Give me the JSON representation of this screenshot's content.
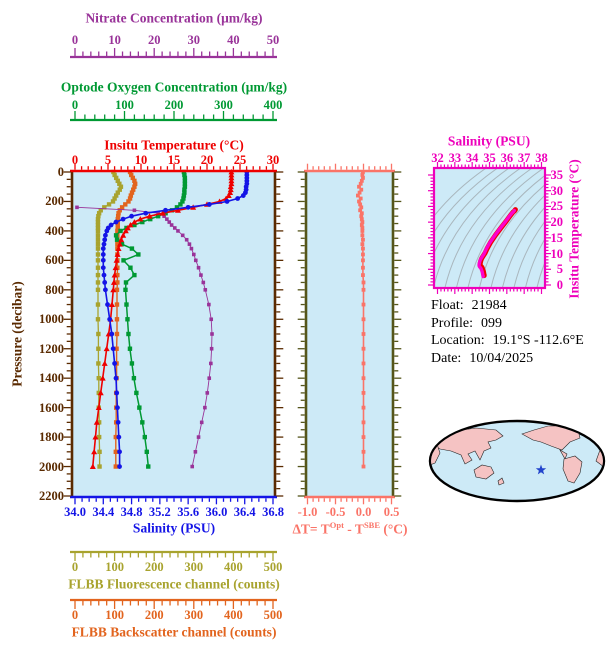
{
  "axes": {
    "nitrate": {
      "title": "Nitrate Concentration (μm/kg)",
      "ticks": [
        "0",
        "10",
        "20",
        "30",
        "40",
        "50"
      ],
      "range": [
        0,
        50
      ],
      "color": "#993399"
    },
    "oxygen": {
      "title": "Optode Oxygen Concentration (μm/kg)",
      "ticks": [
        "0",
        "100",
        "200",
        "300",
        "400"
      ],
      "range": [
        0,
        400
      ],
      "color": "#009933"
    },
    "temperature": {
      "title": "Insitu Temperature (°C)",
      "ticks": [
        "0",
        "5",
        "10",
        "15",
        "20",
        "25",
        "30"
      ],
      "range": [
        0,
        30
      ],
      "color": "#ee0000"
    },
    "salinity": {
      "title": "Salinity (PSU)",
      "ticks": [
        "34.0",
        "34.4",
        "34.8",
        "35.2",
        "35.6",
        "36.0",
        "36.4",
        "36.8"
      ],
      "range": [
        34.0,
        36.8
      ],
      "color": "#1414e6"
    },
    "pressure": {
      "title": "Pressure (decibar)",
      "ticks": [
        "0",
        "200",
        "400",
        "600",
        "800",
        "1000",
        "1200",
        "1400",
        "1600",
        "1800",
        "2000",
        "2200"
      ],
      "range": [
        0,
        2200
      ],
      "color": "#5a2a00"
    },
    "fluorescence": {
      "title": "FLBB Fluorescence channel (counts)",
      "ticks": [
        "0",
        "100",
        "200",
        "300",
        "400",
        "500"
      ],
      "range": [
        0,
        500
      ],
      "color": "#a8a32e"
    },
    "backscatter": {
      "title": "FLBB Backscatter channel (counts)",
      "ticks": [
        "0",
        "100",
        "200",
        "300",
        "400",
        "500"
      ],
      "range": [
        0,
        500
      ],
      "color": "#e2641e"
    },
    "delta_t": {
      "label_parts": {
        "pre": "ΔT= T",
        "sup1": "Opt",
        "mid": " - T",
        "sup2": "SBE",
        "post": " (°C)"
      },
      "ticks": [
        "-1.0",
        "-0.5",
        "0.0",
        "0.5"
      ],
      "range": [
        -1.0,
        0.5
      ],
      "color": "#fa7468"
    },
    "ts_salinity": {
      "title": "Salinity (PSU)",
      "ticks": [
        "32",
        "33",
        "34",
        "35",
        "36",
        "37",
        "38"
      ],
      "range": [
        32,
        38
      ],
      "color": "#ee00bb"
    },
    "ts_temperature": {
      "title": "Insitu Temperature (°C)",
      "ticks": [
        "0",
        "5",
        "10",
        "15",
        "20",
        "25",
        "30",
        "35"
      ],
      "range": [
        0,
        35
      ],
      "color": "#ee00bb"
    }
  },
  "chart_data": {
    "type": "line",
    "title": "Argo float vertical profiles vs pressure (y-axis inverted, 0-2200 decibar)",
    "pressure_dbar": [
      0,
      20,
      40,
      60,
      80,
      100,
      120,
      140,
      160,
      180,
      200,
      220,
      240,
      260,
      280,
      300,
      320,
      340,
      360,
      380,
      400,
      430,
      460,
      490,
      520,
      560,
      600,
      650,
      700,
      750,
      800,
      900,
      1000,
      1100,
      1200,
      1300,
      1400,
      1500,
      1600,
      1700,
      1800,
      1900,
      2000
    ],
    "series": [
      {
        "name": "Insitu Temperature (°C)",
        "axis_range": [
          0,
          30
        ],
        "color": "#ee0000",
        "marker": "triangle",
        "values": [
          23.7,
          23.7,
          23.7,
          23.7,
          23.7,
          23.6,
          23.6,
          23.5,
          23.3,
          22.9,
          21.9,
          20.0,
          17.9,
          15.6,
          13.3,
          11.3,
          9.9,
          9.0,
          8.4,
          8.0,
          7.7,
          7.3,
          7.0,
          6.8,
          6.6,
          6.45,
          6.3,
          6.15,
          6.0,
          5.9,
          5.8,
          5.6,
          5.4,
          5.1,
          4.8,
          4.5,
          4.2,
          3.9,
          3.6,
          3.3,
          3.1,
          2.9,
          2.7
        ]
      },
      {
        "name": "Salinity (PSU)",
        "axis_range": [
          34.0,
          36.8
        ],
        "color": "#1414e6",
        "marker": "circle",
        "values": [
          36.43,
          36.43,
          36.43,
          36.43,
          36.43,
          36.42,
          36.42,
          36.41,
          36.38,
          36.3,
          36.15,
          35.9,
          35.6,
          35.28,
          35.0,
          34.8,
          34.68,
          34.58,
          34.51,
          34.47,
          34.45,
          34.43,
          34.42,
          34.41,
          34.4,
          34.4,
          34.4,
          34.4,
          34.41,
          34.42,
          34.43,
          34.46,
          34.49,
          34.52,
          34.54,
          34.56,
          34.58,
          34.59,
          34.6,
          34.61,
          34.62,
          34.63,
          34.63
        ]
      },
      {
        "name": "Optode Oxygen Concentration (μm/kg)",
        "axis_range": [
          0,
          400
        ],
        "color": "#009933",
        "marker": "square",
        "values": [
          220,
          221,
          222,
          222,
          222,
          222,
          221,
          221,
          220,
          219,
          217,
          213,
          206,
          196,
          183,
          168,
          152,
          136,
          120,
          104,
          92,
          83,
          85,
          95,
          115,
          128,
          98,
          112,
          120,
          103,
          102,
          104,
          106,
          108,
          111,
          115,
          119,
          124,
          130,
          136,
          141,
          145,
          148
        ]
      },
      {
        "name": "Nitrate Concentration (μm/kg)",
        "axis_range": [
          0,
          50
        ],
        "color": "#993399",
        "marker": "square",
        "values": [
          null,
          null,
          null,
          null,
          null,
          null,
          null,
          null,
          null,
          null,
          null,
          null,
          0.5,
          15,
          21,
          22.5,
          23.2,
          23.8,
          24.4,
          25.2,
          26,
          27.2,
          28.2,
          28.9,
          29.4,
          30,
          30.5,
          31.2,
          31.8,
          32.4,
          32.9,
          33.8,
          34.4,
          34.6,
          34.5,
          34.3,
          33.9,
          33.4,
          32.8,
          32.0,
          31.2,
          30.4,
          29.6
        ]
      },
      {
        "name": "FLBB Fluorescence channel (counts)",
        "axis_range": [
          0,
          500
        ],
        "color": "#a8a32e",
        "marker": "square",
        "values": [
          97,
          100,
          104,
          108,
          112,
          116,
          113,
          108,
          104,
          100,
          96,
          86,
          74,
          65,
          61,
          59,
          58,
          58,
          58,
          58,
          58,
          58,
          58,
          58,
          58,
          58,
          58,
          58,
          58,
          58,
          58,
          58,
          58,
          59,
          59,
          59,
          60,
          60,
          60,
          61,
          61,
          62,
          62
        ]
      },
      {
        "name": "FLBB Backscatter channel (counts)",
        "axis_range": [
          0,
          500
        ],
        "color": "#e2641e",
        "marker": "square",
        "values": [
          139,
          142,
          146,
          150,
          152,
          150,
          147,
          144,
          141,
          139,
          135,
          127,
          119,
          113,
          110,
          109,
          108,
          108,
          108,
          108,
          107,
          107,
          107,
          107,
          107,
          107,
          107,
          107,
          107,
          107,
          106,
          106,
          106,
          106,
          105,
          105,
          105,
          104,
          104,
          104,
          103,
          103,
          103
        ]
      },
      {
        "name": "ΔT = TOpt - TSBE (°C)",
        "panel": "delta",
        "axis_range": [
          -1.0,
          0.5
        ],
        "color": "#fa7468",
        "marker": "square",
        "values": [
          -0.01,
          -0.02,
          -0.01,
          -0.03,
          -0.05,
          -0.08,
          -0.04,
          -0.07,
          -0.1,
          -0.05,
          -0.08,
          -0.06,
          -0.04,
          -0.06,
          -0.03,
          -0.04,
          -0.03,
          -0.02,
          -0.03,
          -0.02,
          -0.02,
          -0.02,
          -0.01,
          -0.02,
          -0.01,
          -0.01,
          -0.01,
          -0.01,
          -0.01,
          0.0,
          0.0,
          0.0,
          0.0,
          0.0,
          0.0,
          0.0,
          0.0,
          0.0,
          0.0,
          0.0,
          0.0,
          0.0,
          0.0
        ]
      }
    ],
    "ts_plot": {
      "title": "Salinity (PSU)",
      "ylabel": "Insitu Temperature (°C)",
      "xlim": [
        32,
        38
      ],
      "ylim": [
        0,
        35
      ],
      "note": "thick magenta T-S curve over red curve, drawn from salinity & temperature series; gray isopycnal contours on light-blue background"
    }
  },
  "panel_style": {
    "plot_bg": "#cdeaf7",
    "frame_brown": "#5a2a00",
    "frame_olive": "#55551a",
    "contour_gray": "#a9b6bd",
    "ts_curve": "#ff00cc",
    "ts_curve_under": "#ee0000"
  },
  "float_info": {
    "rows": [
      {
        "label": "Float:",
        "value": "21984"
      },
      {
        "label": "Profile:",
        "value": "099"
      },
      {
        "label": "Location:",
        "value": "19.1°S  -112.6°E"
      },
      {
        "label": "Date:",
        "value": "10/04/2025"
      }
    ]
  },
  "map": {
    "ocean_color": "#cdeaf7",
    "land_color": "#f5c3c3",
    "outline_color": "#000000",
    "marker": "blue-star",
    "marker_color": "#2244cc"
  }
}
